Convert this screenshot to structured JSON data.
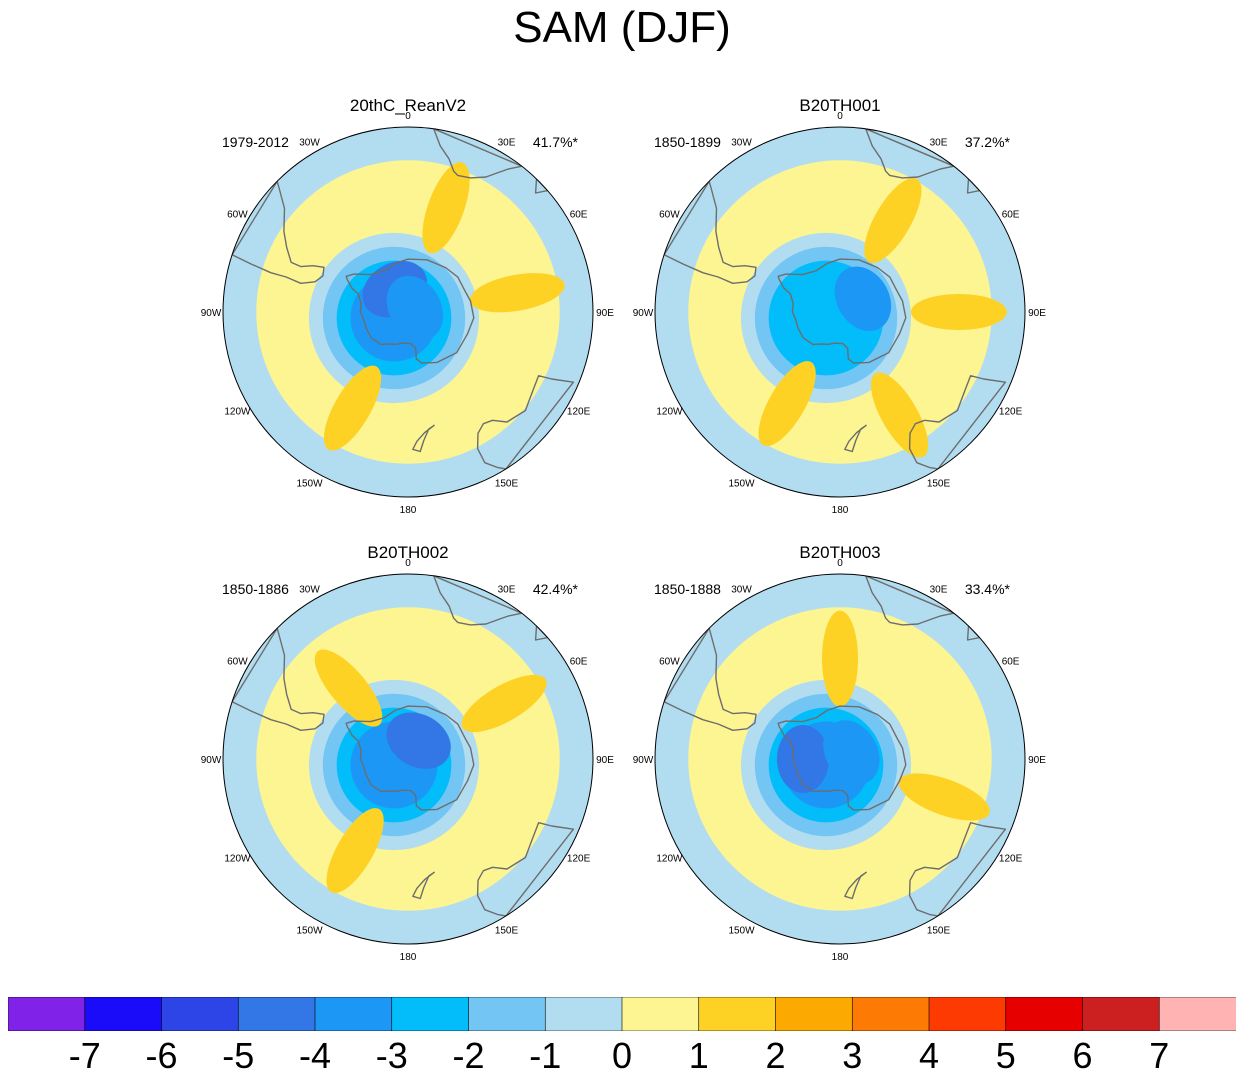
{
  "title": "SAM (DJF)",
  "chart_data": {
    "type": "contour-map",
    "projection": "south polar stereographic",
    "field": "SAM regression pattern (DJF)",
    "panels": [
      {
        "title": "20thC_ReanV2",
        "years": "1979-2012",
        "variance": "41.7%*",
        "anomalies": [
          {
            "lon": 330,
            "lat": -80,
            "value": -4
          },
          {
            "lon": 60,
            "lat": -87,
            "value": -3
          },
          {
            "lon": 20,
            "lat": -48,
            "value": 1
          },
          {
            "lon": 80,
            "lat": -48,
            "value": 1
          },
          {
            "lon": 210,
            "lat": -48,
            "value": 1
          }
        ]
      },
      {
        "title": "B20TH001",
        "years": "1850-1899",
        "variance": "37.2%*",
        "anomalies": [
          {
            "lon": 60,
            "lat": -80,
            "value": -3
          },
          {
            "lon": 90,
            "lat": -45,
            "value": 1
          },
          {
            "lon": 30,
            "lat": -50,
            "value": 1
          },
          {
            "lon": 150,
            "lat": -45,
            "value": 1
          },
          {
            "lon": 210,
            "lat": -50,
            "value": 1
          }
        ]
      },
      {
        "title": "B20TH002",
        "years": "1850-1886",
        "variance": "42.4%*",
        "anomalies": [
          {
            "lon": 30,
            "lat": -82,
            "value": -4
          },
          {
            "lon": 60,
            "lat": -48,
            "value": 1
          },
          {
            "lon": 210,
            "lat": -50,
            "value": 1
          },
          {
            "lon": 320,
            "lat": -55,
            "value": 1
          }
        ]
      },
      {
        "title": "B20TH003",
        "years": "1850-1888",
        "variance": "33.4%*",
        "anomalies": [
          {
            "lon": 270,
            "lat": -76,
            "value": -4
          },
          {
            "lon": 60,
            "lat": -85,
            "value": -3
          },
          {
            "lon": 0,
            "lat": -52,
            "value": 1
          },
          {
            "lon": 110,
            "lat": -48,
            "value": 1
          }
        ]
      }
    ],
    "longitude_labels": [
      "0",
      "30E",
      "60E",
      "90E",
      "120E",
      "150E",
      "180",
      "150W",
      "120W",
      "90W",
      "60W",
      "30W"
    ],
    "colorbar": {
      "labels": [
        "-7",
        "-6",
        "-5",
        "-4",
        "-3",
        "-2",
        "-1",
        "0",
        "1",
        "2",
        "3",
        "4",
        "5",
        "6",
        "7"
      ],
      "levels": [
        -7,
        -6,
        -5,
        -4,
        -3,
        -2,
        -1,
        0,
        1,
        2,
        3,
        4,
        5,
        6,
        7
      ],
      "colors": [
        "#8122e8",
        "#1a0cf8",
        "#2d45e6",
        "#3376e6",
        "#1c97f6",
        "#02bdf9",
        "#73c6f3",
        "#b2ddf1",
        "#fdf591",
        "#fdd225",
        "#fca901",
        "#fd7a05",
        "#fe3a03",
        "#e60000",
        "#cc1f1f",
        "#ffb3b3"
      ]
    }
  }
}
